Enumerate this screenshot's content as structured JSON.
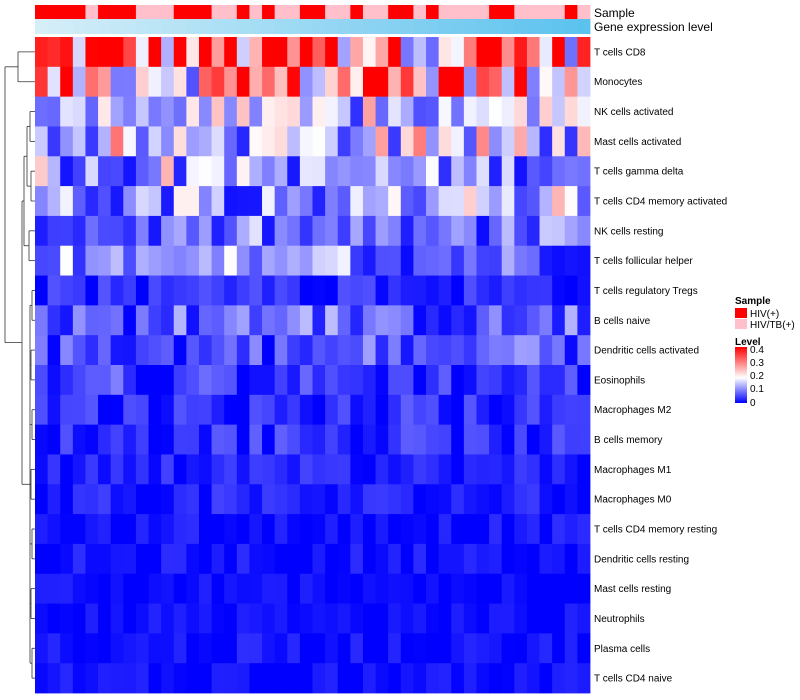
{
  "chart_data": {
    "type": "heatmap",
    "title": "",
    "annotation_labels": {
      "sample": "Sample",
      "gene": "Gene expression level"
    },
    "rows": [
      "T cells CD8",
      "Monocytes",
      "NK cells activated",
      "Mast cells activated",
      "T cells gamma delta",
      "T cells CD4 memory activated",
      "NK cells resting",
      "T cells follicular helper",
      "T cells regulatory  Tregs",
      "B cells naive",
      "Dendritic cells activated",
      "Eosinophils",
      "Macrophages M2",
      "B cells memory",
      "Macrophages M1",
      "Macrophages M0",
      "T cells CD4 memory resting",
      "Dendritic cells resting",
      "Mast cells resting",
      "Neutrophils",
      "Plasma cells",
      "T cells CD4 naive"
    ],
    "n_columns": 44,
    "sample_groups": [
      "HIV(+)",
      "HIV(+)",
      "HIV(+)",
      "HIV(+)",
      "HIV/TB(+)",
      "HIV(+)",
      "HIV(+)",
      "HIV(+)",
      "HIV/TB(+)",
      "HIV/TB(+)",
      "HIV/TB(+)",
      "HIV(+)",
      "HIV(+)",
      "HIV(+)",
      "HIV/TB(+)",
      "HIV/TB(+)",
      "HIV(+)",
      "HIV/TB(+)",
      "HIV(+)",
      "HIV/TB(+)",
      "HIV/TB(+)",
      "HIV(+)",
      "HIV(+)",
      "HIV/TB(+)",
      "HIV/TB(+)",
      "HIV(+)",
      "HIV/TB(+)",
      "HIV/TB(+)",
      "HIV(+)",
      "HIV(+)",
      "HIV/TB(+)",
      "HIV(+)",
      "HIV/TB(+)",
      "HIV/TB(+)",
      "HIV/TB(+)",
      "HIV/TB(+)",
      "HIV(+)",
      "HIV(+)",
      "HIV/TB(+)",
      "HIV/TB(+)",
      "HIV/TB(+)",
      "HIV/TB(+)",
      "HIV(+)",
      "HIV/TB(+)"
    ],
    "row_means": [
      0.34,
      0.27,
      0.13,
      0.13,
      0.11,
      0.11,
      0.07,
      0.08,
      0.03,
      0.06,
      0.05,
      0.04,
      0.03,
      0.03,
      0.02,
      0.02,
      0.01,
      0.01,
      0.005,
      0.005,
      0.01,
      0.01
    ],
    "value_range": [
      0,
      0.45
    ],
    "legend": {
      "sample_title": "Sample",
      "sample_entries": [
        {
          "label": "HIV(+)",
          "color": "#ff0000"
        },
        {
          "label": "HIV/TB(+)",
          "color": "#ffc0cb"
        }
      ],
      "level_title": "Level",
      "level_ticks": [
        "0.4",
        "0.3",
        "0.2",
        "0.1",
        "0"
      ],
      "position": "right"
    },
    "colors": {
      "low": "#0000ff",
      "mid": "#ffffff",
      "high": "#ff0000",
      "gene_start": "#d6eef8",
      "gene_end": "#5bc2ee"
    }
  }
}
